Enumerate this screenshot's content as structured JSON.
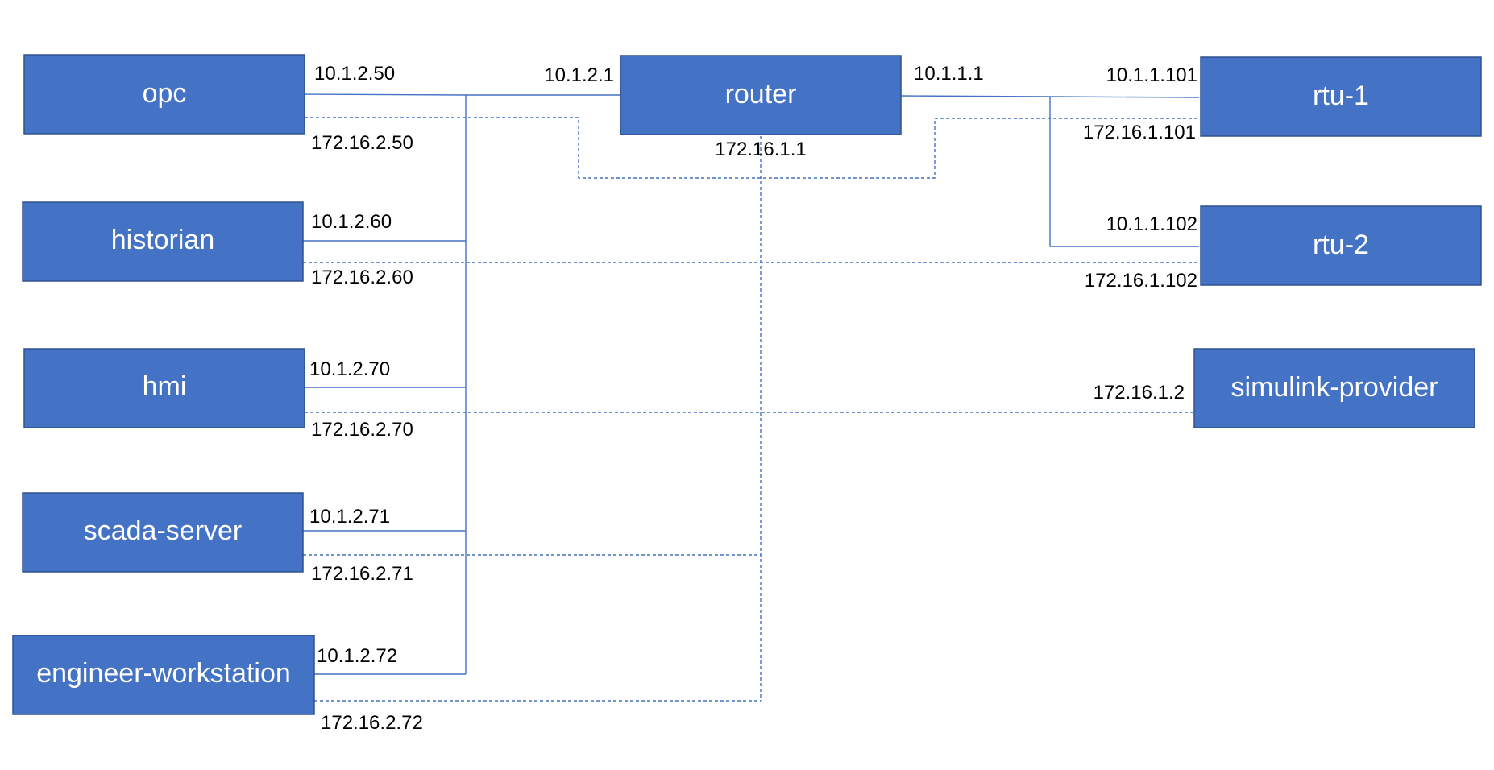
{
  "colors": {
    "node_fill": "#4472C4",
    "node_border": "#2F528F",
    "link": "#4472C4",
    "label_text": "#000000",
    "node_text": "#FFFFFF"
  },
  "nodes": {
    "opc": "opc",
    "historian": "historian",
    "hmi": "hmi",
    "scada_server": "scada-server",
    "engineer_workstation": "engineer-workstation",
    "router": "router",
    "rtu1": "rtu-1",
    "rtu2": "rtu-2",
    "simulink_provider": "simulink-provider"
  },
  "addresses": {
    "opc_solid": "10.1.2.50",
    "opc_dashed": "172.16.2.50",
    "historian_solid": "10.1.2.60",
    "historian_dashed": "172.16.2.60",
    "hmi_solid": "10.1.2.70",
    "hmi_dashed": "172.16.2.70",
    "scada_solid": "10.1.2.71",
    "scada_dashed": "172.16.2.71",
    "eng_solid": "10.1.2.72",
    "eng_dashed": "172.16.2.72",
    "router_left": "10.1.2.1",
    "router_right": "10.1.1.1",
    "router_bottom": "172.16.1.1",
    "rtu1_solid": "10.1.1.101",
    "rtu1_dashed": "172.16.1.101",
    "rtu2_solid": "10.1.1.102",
    "rtu2_dashed": "172.16.1.102",
    "simulink_dashed": "172.16.1.2"
  }
}
